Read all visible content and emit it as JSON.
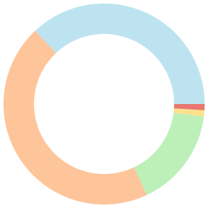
{
  "chart_data": {
    "type": "pie",
    "donut": true,
    "values": [
      1,
      1,
      16,
      45,
      37
    ],
    "colors": [
      "#e8776f",
      "#fde28e",
      "#bdefb9",
      "#fec59b",
      "#bde3f0"
    ]
  }
}
